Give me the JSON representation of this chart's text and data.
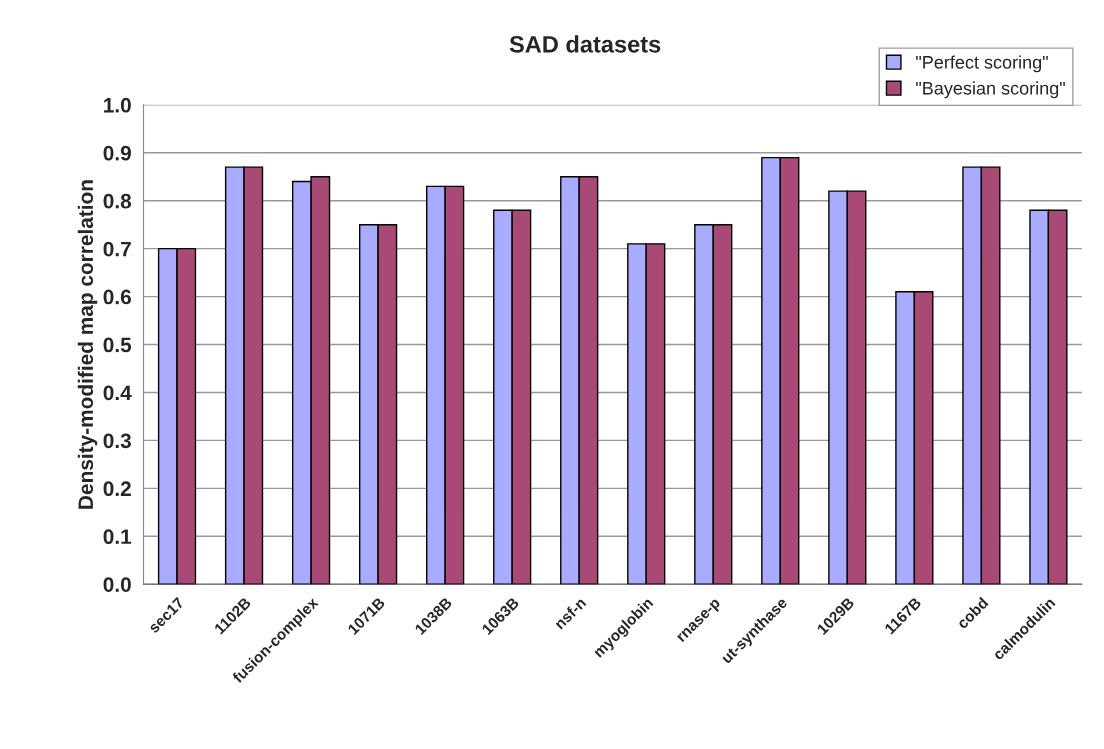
{
  "chart_data": {
    "type": "bar",
    "title": "SAD datasets",
    "ylabel": "Density-modified map correlation",
    "categories": [
      "sec17",
      "1102B",
      "fusion-complex",
      "1071B",
      "1038B",
      "1063B",
      "nsf-n",
      "myoglobin",
      "rnase-p",
      "ut-synthase",
      "1029B",
      "1167B",
      "cobd",
      "calmodulin"
    ],
    "series": [
      {
        "name": "\"Perfect scoring\"",
        "color": "#a9abfe",
        "values": [
          0.7,
          0.87,
          0.84,
          0.75,
          0.83,
          0.78,
          0.85,
          0.71,
          0.75,
          0.89,
          0.82,
          0.61,
          0.87,
          0.78
        ]
      },
      {
        "name": "\"Bayesian scoring\"",
        "color": "#a94975",
        "values": [
          0.7,
          0.87,
          0.85,
          0.75,
          0.83,
          0.78,
          0.85,
          0.71,
          0.75,
          0.89,
          0.82,
          0.61,
          0.87,
          0.78
        ]
      }
    ],
    "ylim": [
      0,
      1
    ],
    "yticks": [
      {
        "value": 0,
        "label": "0.0"
      },
      {
        "value": 0.1,
        "label": "0.1"
      },
      {
        "value": 0.2,
        "label": "0.2"
      },
      {
        "value": 0.3,
        "label": "0.3"
      },
      {
        "value": 0.4,
        "label": "0.4"
      },
      {
        "value": 0.5,
        "label": "0.5"
      },
      {
        "value": 0.6,
        "label": "0.6"
      },
      {
        "value": 0.7,
        "label": "0.7"
      },
      {
        "value": 0.8,
        "label": "0.8"
      },
      {
        "value": 0.9,
        "label": "0.9"
      },
      {
        "value": 1,
        "label": "1.0"
      }
    ],
    "grid": "y",
    "legend": "top right"
  }
}
